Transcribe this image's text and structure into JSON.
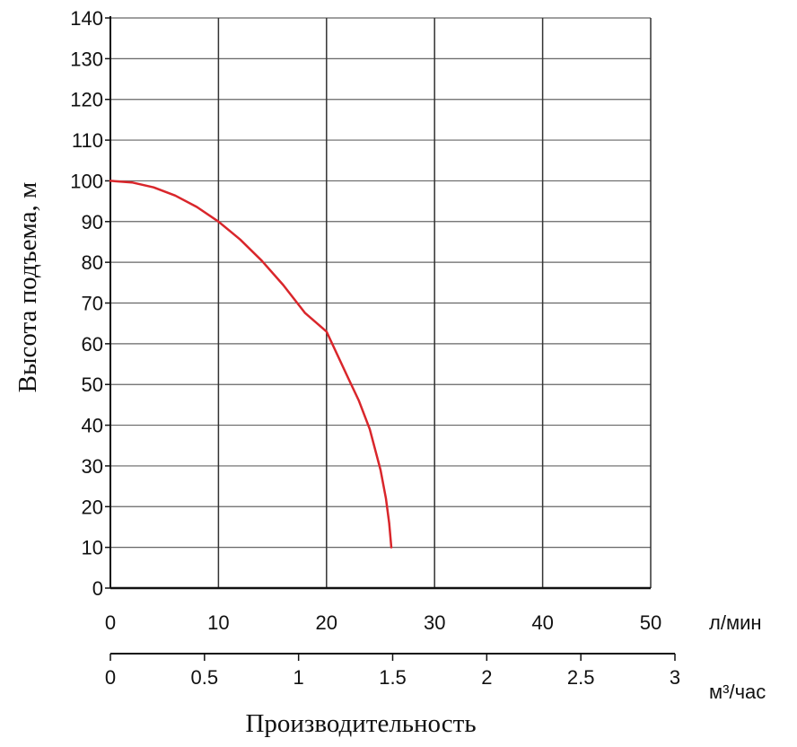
{
  "chart_data": {
    "type": "line",
    "ylabel": "Высота подъема, м",
    "xlabel": "Производительность",
    "x_unit_primary": "л/мин",
    "x_unit_secondary": "м³/час",
    "ylim": [
      0,
      140
    ],
    "xlim": [
      0,
      50
    ],
    "x2lim": [
      0,
      3
    ],
    "yticks": [
      "0",
      "10",
      "20",
      "30",
      "40",
      "50",
      "60",
      "70",
      "80",
      "90",
      "100",
      "110",
      "120",
      "130",
      "140"
    ],
    "xticks": [
      "0",
      "10",
      "20",
      "30",
      "40",
      "50"
    ],
    "x2ticks": [
      "0",
      "0.5",
      "1",
      "1.5",
      "2",
      "2.5",
      "3"
    ],
    "grid": true,
    "series": [
      {
        "color": "#d9262b",
        "x": [
          0,
          2,
          4,
          6,
          8,
          10,
          12,
          14,
          16,
          18,
          20,
          22,
          23,
          24,
          25,
          25.5,
          25.8,
          26
        ],
        "y": [
          100,
          99.6,
          98.4,
          96.4,
          93.6,
          90,
          85.6,
          80.4,
          74.4,
          67.6,
          63,
          51.6,
          46,
          39,
          29,
          22,
          16,
          10
        ]
      }
    ],
    "colors": {
      "line": "#d9262b",
      "grid": "#666666",
      "axis": "#111111"
    }
  }
}
